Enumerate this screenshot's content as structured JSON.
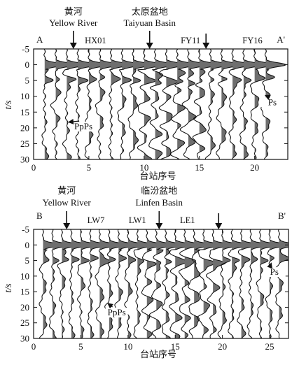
{
  "chart_data": [
    {
      "type": "line",
      "panel": "top",
      "profile_start": "A",
      "profile_end": "A'",
      "xlabel": "台站序号",
      "ylabel": "t/s",
      "xticks": [
        0,
        5,
        10,
        15,
        20
      ],
      "yticks": [
        -5,
        0,
        5,
        10,
        15,
        20,
        25,
        30
      ],
      "xlim": [
        0,
        23
      ],
      "ylim": [
        -5,
        30
      ],
      "y_reversed": true,
      "station_count": 21,
      "annotations": [
        {
          "cn": "黄河",
          "en": "Yellow River",
          "arrow_x": 3.6
        },
        {
          "cn": "太原盆地",
          "en": "Taiyuan Basin",
          "arrow_x": 10.5
        }
      ],
      "station_labels": [
        {
          "text": "HX01",
          "x": 5.6
        },
        {
          "text": "FY11",
          "x": 14.2
        },
        {
          "text": "FY16",
          "x": 19.8
        }
      ],
      "station_arrows": [
        {
          "x": 15.6
        }
      ],
      "phase_labels": [
        {
          "text": "PpPs",
          "x": 4.5,
          "y": 20.5,
          "arrow_tip": [
            3.1,
            18.2
          ]
        },
        {
          "text": "Ps",
          "x": 21.6,
          "y": 12.8,
          "arrow_tip": [
            20.9,
            9.6
          ]
        }
      ]
    },
    {
      "type": "line",
      "panel": "bottom",
      "profile_start": "B",
      "profile_end": "B'",
      "xlabel": "台站序号",
      "ylabel": "t/s",
      "xticks": [
        0,
        5,
        10,
        15,
        20,
        25
      ],
      "yticks": [
        -5,
        0,
        5,
        10,
        15,
        20,
        25,
        30
      ],
      "xlim": [
        0,
        27
      ],
      "ylim": [
        -5,
        30
      ],
      "y_reversed": true,
      "station_count": 26,
      "annotations": [
        {
          "cn": "黄河",
          "en": "Yellow River",
          "arrow_x": 3.5
        },
        {
          "cn": "临汾盆地",
          "en": "Linfen Basin",
          "arrow_x": 13.3
        }
      ],
      "station_labels": [
        {
          "text": "LW7",
          "x": 6.6
        },
        {
          "text": "LW1",
          "x": 11.0
        },
        {
          "text": "LE1",
          "x": 16.3
        }
      ],
      "station_arrows": [
        {
          "x": 19.6
        }
      ],
      "phase_labels": [
        {
          "text": "PpPs",
          "x": 8.8,
          "y": 22.6,
          "arrow_tip": [
            7.8,
            18.6
          ]
        },
        {
          "text": "Ps",
          "x": 25.5,
          "y": 9.6,
          "arrow_tip": [
            25.2,
            5.6
          ]
        }
      ]
    }
  ]
}
